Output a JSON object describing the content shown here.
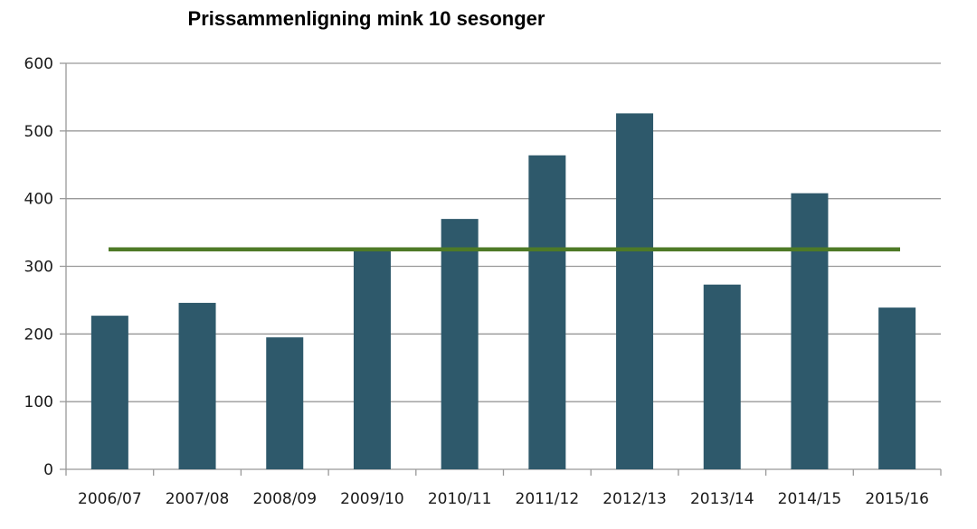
{
  "chart_data": {
    "type": "bar",
    "title": "Prissammenligning mink 10 sesonger",
    "xlabel": "",
    "ylabel": "",
    "categories": [
      "2006/07",
      "2007/08",
      "2008/09",
      "2009/10",
      "2010/11",
      "2011/12",
      "2012/13",
      "2013/14",
      "2014/15",
      "2015/16"
    ],
    "series": [
      {
        "values": [
          227,
          246,
          195,
          326,
          370,
          464,
          526,
          273,
          408,
          239
        ]
      }
    ],
    "reference_line": {
      "value": 325
    },
    "ylim": [
      0,
      600
    ],
    "yticks": [
      0,
      100,
      200,
      300,
      400,
      500,
      600
    ],
    "grid": true,
    "legend": "none",
    "colors": {
      "bar": "#2e596b",
      "reference_line": "#4e7a27",
      "grid": "#999999"
    }
  }
}
